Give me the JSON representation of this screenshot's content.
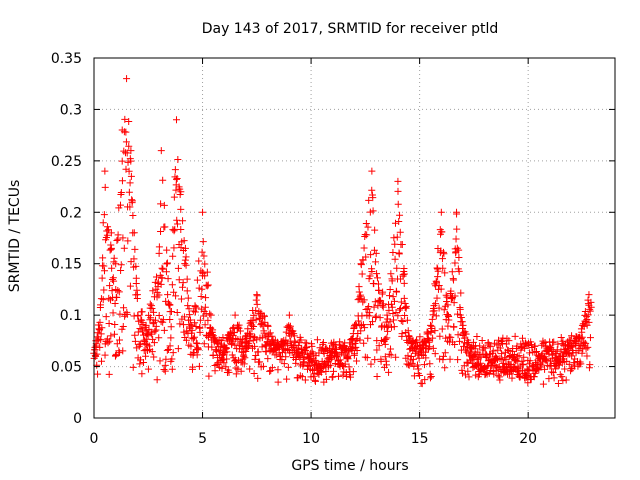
{
  "chart_data": {
    "type": "scatter",
    "title": "Day 143 of 2017, SRMTID for receiver ptld",
    "xlabel": "GPS time / hours",
    "ylabel": "SRMTID / TECUs",
    "xlim": [
      0,
      24
    ],
    "ylim": [
      0,
      0.35
    ],
    "xticks": [
      0,
      5,
      10,
      15,
      20
    ],
    "xtick_labels": [
      "0",
      "5",
      "10",
      "15",
      "20"
    ],
    "yticks": [
      0,
      0.05,
      0.1,
      0.15,
      0.2,
      0.25,
      0.3,
      0.35
    ],
    "ytick_labels": [
      "0",
      "0.05",
      "0.1",
      "0.15",
      "0.2",
      "0.25",
      "0.3",
      "0.35"
    ],
    "grid": true,
    "marker": "+",
    "color": "#ff0000",
    "series": [
      {
        "name": "SRMTID",
        "x_range": [
          0,
          22.9
        ],
        "sample_points": [
          [
            0.1,
            0.07
          ],
          [
            0.3,
            0.11
          ],
          [
            0.5,
            0.24
          ],
          [
            0.8,
            0.18
          ],
          [
            1.0,
            0.15
          ],
          [
            1.3,
            0.28
          ],
          [
            1.5,
            0.33
          ],
          [
            1.7,
            0.26
          ],
          [
            2.0,
            0.12
          ],
          [
            2.4,
            0.09
          ],
          [
            3.0,
            0.16
          ],
          [
            3.1,
            0.26
          ],
          [
            3.5,
            0.11
          ],
          [
            3.8,
            0.29
          ],
          [
            4.0,
            0.22
          ],
          [
            4.5,
            0.09
          ],
          [
            5.0,
            0.2
          ],
          [
            5.5,
            0.08
          ],
          [
            6.0,
            0.07
          ],
          [
            6.5,
            0.1
          ],
          [
            7.0,
            0.08
          ],
          [
            7.5,
            0.12
          ],
          [
            8.0,
            0.09
          ],
          [
            8.5,
            0.07
          ],
          [
            9.0,
            0.1
          ],
          [
            9.5,
            0.06
          ],
          [
            10.0,
            0.06
          ],
          [
            10.5,
            0.05
          ],
          [
            11.0,
            0.07
          ],
          [
            11.5,
            0.05
          ],
          [
            12.0,
            0.09
          ],
          [
            12.3,
            0.15
          ],
          [
            12.8,
            0.24
          ],
          [
            13.0,
            0.16
          ],
          [
            13.5,
            0.1
          ],
          [
            14.0,
            0.23
          ],
          [
            14.3,
            0.14
          ],
          [
            14.5,
            0.08
          ],
          [
            15.0,
            0.07
          ],
          [
            15.5,
            0.09
          ],
          [
            16.0,
            0.2
          ],
          [
            16.3,
            0.11
          ],
          [
            16.7,
            0.2
          ],
          [
            17.0,
            0.09
          ],
          [
            17.5,
            0.06
          ],
          [
            18.0,
            0.05
          ],
          [
            18.5,
            0.06
          ],
          [
            19.0,
            0.05
          ],
          [
            19.5,
            0.06
          ],
          [
            20.0,
            0.04
          ],
          [
            20.5,
            0.06
          ],
          [
            21.0,
            0.07
          ],
          [
            21.5,
            0.06
          ],
          [
            22.0,
            0.08
          ],
          [
            22.5,
            0.09
          ],
          [
            22.8,
            0.12
          ]
        ]
      }
    ]
  }
}
